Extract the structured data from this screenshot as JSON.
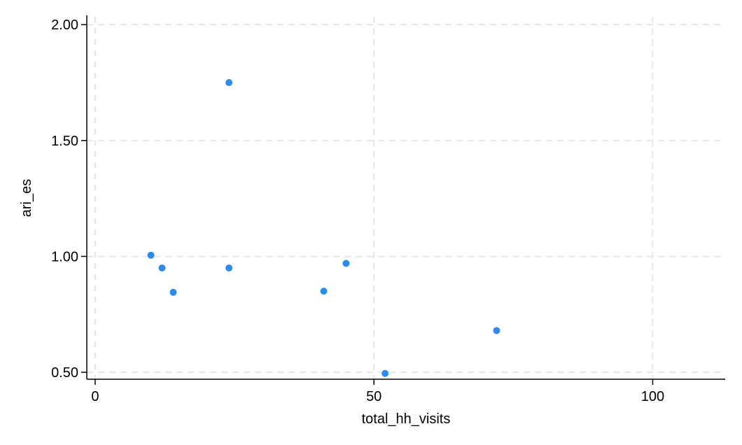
{
  "chart_data": {
    "type": "scatter",
    "title": "",
    "xlabel": "total_hh_visits",
    "ylabel": "ari_es",
    "xlim": [
      -1.5,
      113
    ],
    "ylim": [
      0.47,
      2.04
    ],
    "xticks": [
      0,
      50,
      100
    ],
    "xtick_labels": [
      "0",
      "50",
      "100"
    ],
    "yticks": [
      0.5,
      1.0,
      1.5,
      2.0
    ],
    "ytick_labels": [
      "0.50",
      "1.00",
      "1.50",
      "2.00"
    ],
    "grid": true,
    "legend": "none",
    "marker_color": "#2b8cf0",
    "points": [
      {
        "x": 10,
        "y": 1.005
      },
      {
        "x": 12,
        "y": 0.95
      },
      {
        "x": 14,
        "y": 0.845
      },
      {
        "x": 24,
        "y": 1.75
      },
      {
        "x": 24,
        "y": 0.95
      },
      {
        "x": 41,
        "y": 0.85
      },
      {
        "x": 45,
        "y": 0.97
      },
      {
        "x": 52,
        "y": 0.495
      },
      {
        "x": 72,
        "y": 0.68
      }
    ]
  }
}
